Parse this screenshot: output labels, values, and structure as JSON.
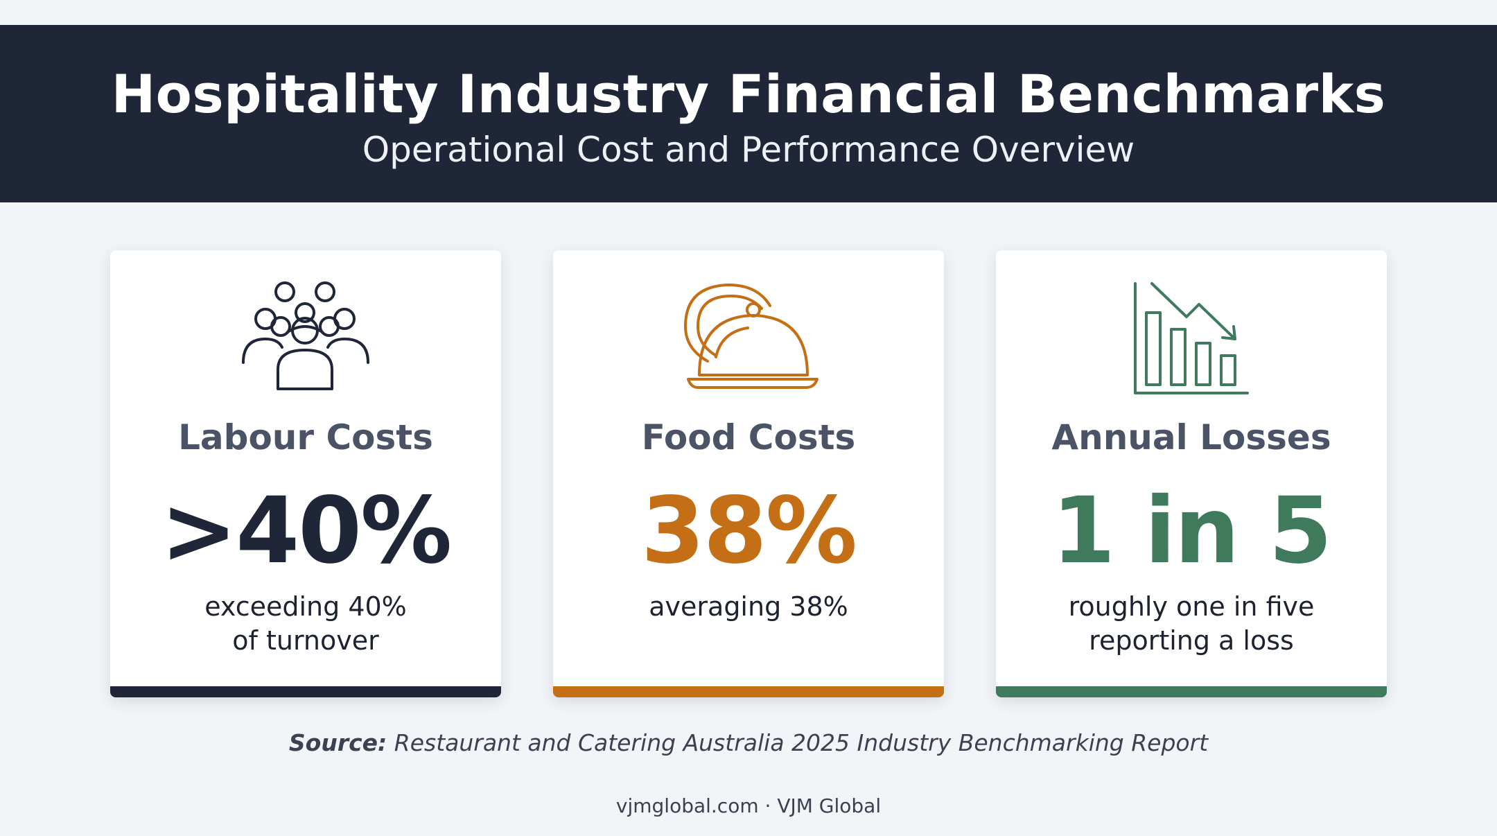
{
  "header": {
    "title": "Hospitality Industry Financial Benchmarks",
    "subtitle": "Operational Cost and Performance Overview"
  },
  "cards": [
    {
      "icon": "people-group-icon",
      "label": "Labour Costs",
      "value": ">40%",
      "description_line1": "exceeding 40%",
      "description_line2": "of turnover",
      "color": "#1f2638"
    },
    {
      "icon": "food-cloche-icon",
      "label": "Food Costs",
      "value": "38%",
      "description_line1": "averaging 38%",
      "description_line2": "",
      "color": "#c46e15"
    },
    {
      "icon": "declining-bar-chart-icon",
      "label": "Annual Losses",
      "value": "1 in 5",
      "description_line1": "roughly one in five",
      "description_line2": "reporting a loss",
      "color": "#3f7a5c"
    }
  ],
  "source": {
    "label": "Source:",
    "text": "Restaurant and Catering Australia 2025 Industry Benchmarking Report"
  },
  "footer": {
    "text": "vjmglobal.com · VJM Global"
  },
  "colors": {
    "banner": "#1f2638",
    "background": "#f2f5f8",
    "label": "#4a5466"
  }
}
